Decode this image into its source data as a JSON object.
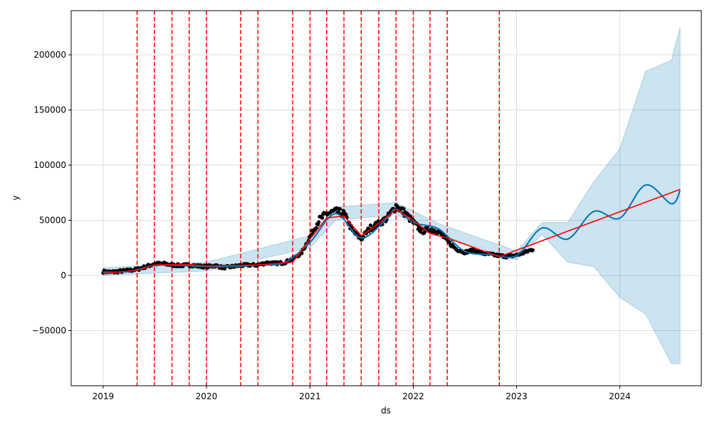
{
  "chart_data": {
    "type": "line",
    "title": "",
    "xlabel": "ds",
    "ylabel": "y",
    "x_ticks": [
      "2019",
      "2020",
      "2021",
      "2022",
      "2023",
      "2024"
    ],
    "y_ticks": [
      {
        "value": -50000,
        "label": "−50000"
      },
      {
        "value": 0,
        "label": "0"
      },
      {
        "value": 50000,
        "label": "50000"
      },
      {
        "value": 100000,
        "label": "100000"
      },
      {
        "value": 150000,
        "label": "150000"
      },
      {
        "value": 200000,
        "label": "200000"
      }
    ],
    "xlim": [
      "2018-09-10",
      "2024-10-15"
    ],
    "ylim": [
      -100000,
      240000
    ],
    "grid": true,
    "colors": {
      "observed": "#000000",
      "forecast": "#0072B2",
      "interval": "#0072B2",
      "trend": "#ff0000",
      "changepoint": "#ff0000",
      "grid": "#dddddd"
    },
    "changepoints": [
      "2019-05-01",
      "2019-07-01",
      "2019-09-01",
      "2019-11-01",
      "2020-01-01",
      "2020-05-01",
      "2020-07-01",
      "2020-11-01",
      "2021-01-01",
      "2021-03-01",
      "2021-05-01",
      "2021-07-01",
      "2021-09-01",
      "2021-11-01",
      "2022-01-01",
      "2022-03-01",
      "2022-05-01",
      "2022-11-01"
    ],
    "series": [
      {
        "role": "observed",
        "style": "points",
        "points": [
          [
            "2019-01-01",
            3500
          ],
          [
            "2019-02-01",
            3000
          ],
          [
            "2019-03-01",
            3800
          ],
          [
            "2019-04-01",
            4500
          ],
          [
            "2019-05-01",
            5500
          ],
          [
            "2019-06-01",
            8000
          ],
          [
            "2019-07-01",
            10500
          ],
          [
            "2019-08-01",
            10800
          ],
          [
            "2019-09-01",
            9500
          ],
          [
            "2019-10-01",
            9000
          ],
          [
            "2019-11-01",
            9500
          ],
          [
            "2019-12-01",
            8500
          ],
          [
            "2020-01-01",
            8000
          ],
          [
            "2020-02-01",
            9000
          ],
          [
            "2020-03-01",
            7000
          ],
          [
            "2020-04-01",
            8000
          ],
          [
            "2020-05-01",
            9000
          ],
          [
            "2020-06-01",
            9500
          ],
          [
            "2020-07-01",
            9500
          ],
          [
            "2020-08-01",
            11500
          ],
          [
            "2020-09-01",
            11000
          ],
          [
            "2020-10-01",
            11500
          ],
          [
            "2020-11-01",
            15000
          ],
          [
            "2020-12-01",
            20000
          ],
          [
            "2021-01-01",
            35000
          ],
          [
            "2021-02-01",
            50000
          ],
          [
            "2021-03-01",
            56000
          ],
          [
            "2021-04-01",
            58000
          ],
          [
            "2021-05-01",
            56000
          ],
          [
            "2021-06-01",
            40000
          ],
          [
            "2021-07-01",
            33000
          ],
          [
            "2021-08-01",
            43000
          ],
          [
            "2021-09-01",
            47000
          ],
          [
            "2021-10-01",
            52000
          ],
          [
            "2021-11-01",
            63000
          ],
          [
            "2021-12-01",
            57000
          ],
          [
            "2022-01-01",
            48000
          ],
          [
            "2022-02-01",
            40000
          ],
          [
            "2022-03-01",
            42000
          ],
          [
            "2022-04-01",
            40000
          ],
          [
            "2022-05-01",
            31000
          ],
          [
            "2022-06-01",
            24000
          ],
          [
            "2022-07-01",
            21000
          ],
          [
            "2022-08-01",
            23000
          ],
          [
            "2022-09-01",
            20000
          ],
          [
            "2022-10-01",
            19000
          ],
          [
            "2022-11-01",
            18000
          ],
          [
            "2022-12-01",
            17000
          ],
          [
            "2023-01-01",
            18500
          ],
          [
            "2023-02-01",
            21000
          ],
          [
            "2023-03-01",
            24000
          ]
        ]
      },
      {
        "role": "forecast",
        "style": "line",
        "points": [
          [
            "2019-01-01",
            3000
          ],
          [
            "2019-04-01",
            3500
          ],
          [
            "2019-07-01",
            9000
          ],
          [
            "2019-10-01",
            9000
          ],
          [
            "2020-01-01",
            8000
          ],
          [
            "2020-04-01",
            8000
          ],
          [
            "2020-07-01",
            9500
          ],
          [
            "2020-10-01",
            11500
          ],
          [
            "2021-01-01",
            30000
          ],
          [
            "2021-04-01",
            56000
          ],
          [
            "2021-07-01",
            34000
          ],
          [
            "2021-10-01",
            52000
          ],
          [
            "2021-11-01",
            60000
          ],
          [
            "2022-01-01",
            48000
          ],
          [
            "2022-04-01",
            42000
          ],
          [
            "2022-07-01",
            22000
          ],
          [
            "2022-10-01",
            19000
          ],
          [
            "2023-01-01",
            18000
          ],
          [
            "2023-04-01",
            43000
          ],
          [
            "2023-07-01",
            33000
          ],
          [
            "2023-10-01",
            58000
          ],
          [
            "2024-01-01",
            52000
          ],
          [
            "2024-04-01",
            82000
          ],
          [
            "2024-07-01",
            65000
          ],
          [
            "2024-08-01",
            77000
          ]
        ]
      },
      {
        "role": "interval",
        "style": "area",
        "upper": [
          [
            "2019-01-01",
            7000
          ],
          [
            "2020-01-01",
            12000
          ],
          [
            "2021-01-01",
            36000
          ],
          [
            "2021-04-01",
            62000
          ],
          [
            "2021-11-01",
            66000
          ],
          [
            "2022-04-01",
            47000
          ],
          [
            "2023-01-01",
            22000
          ],
          [
            "2023-04-01",
            48000
          ],
          [
            "2023-07-01",
            48000
          ],
          [
            "2023-10-01",
            85000
          ],
          [
            "2024-01-01",
            115000
          ],
          [
            "2024-04-01",
            185000
          ],
          [
            "2024-07-01",
            195000
          ],
          [
            "2024-08-01",
            225000
          ]
        ],
        "lower": [
          [
            "2019-01-01",
            0
          ],
          [
            "2020-01-01",
            4000
          ],
          [
            "2021-01-01",
            25000
          ],
          [
            "2021-04-01",
            50000
          ],
          [
            "2021-11-01",
            55000
          ],
          [
            "2022-04-01",
            37000
          ],
          [
            "2023-01-01",
            14000
          ],
          [
            "2023-04-01",
            37000
          ],
          [
            "2023-07-01",
            12000
          ],
          [
            "2023-10-01",
            8000
          ],
          [
            "2024-01-01",
            -20000
          ],
          [
            "2024-04-01",
            -35000
          ],
          [
            "2024-07-01",
            -80000
          ],
          [
            "2024-08-01",
            -80000
          ]
        ]
      },
      {
        "role": "trend",
        "style": "line",
        "points": [
          [
            "2019-01-01",
            1800
          ],
          [
            "2019-05-01",
            4500
          ],
          [
            "2019-07-01",
            9500
          ],
          [
            "2019-11-01",
            10000
          ],
          [
            "2020-01-01",
            8500
          ],
          [
            "2020-07-01",
            9500
          ],
          [
            "2020-11-01",
            12000
          ],
          [
            "2021-01-01",
            33000
          ],
          [
            "2021-03-01",
            52000
          ],
          [
            "2021-05-01",
            54000
          ],
          [
            "2021-07-01",
            36000
          ],
          [
            "2021-09-01",
            47000
          ],
          [
            "2021-11-01",
            60000
          ],
          [
            "2022-01-01",
            50000
          ],
          [
            "2022-03-01",
            38000
          ],
          [
            "2022-05-01",
            34000
          ],
          [
            "2022-11-01",
            17000
          ],
          [
            "2024-08-01",
            78000
          ]
        ]
      }
    ]
  }
}
